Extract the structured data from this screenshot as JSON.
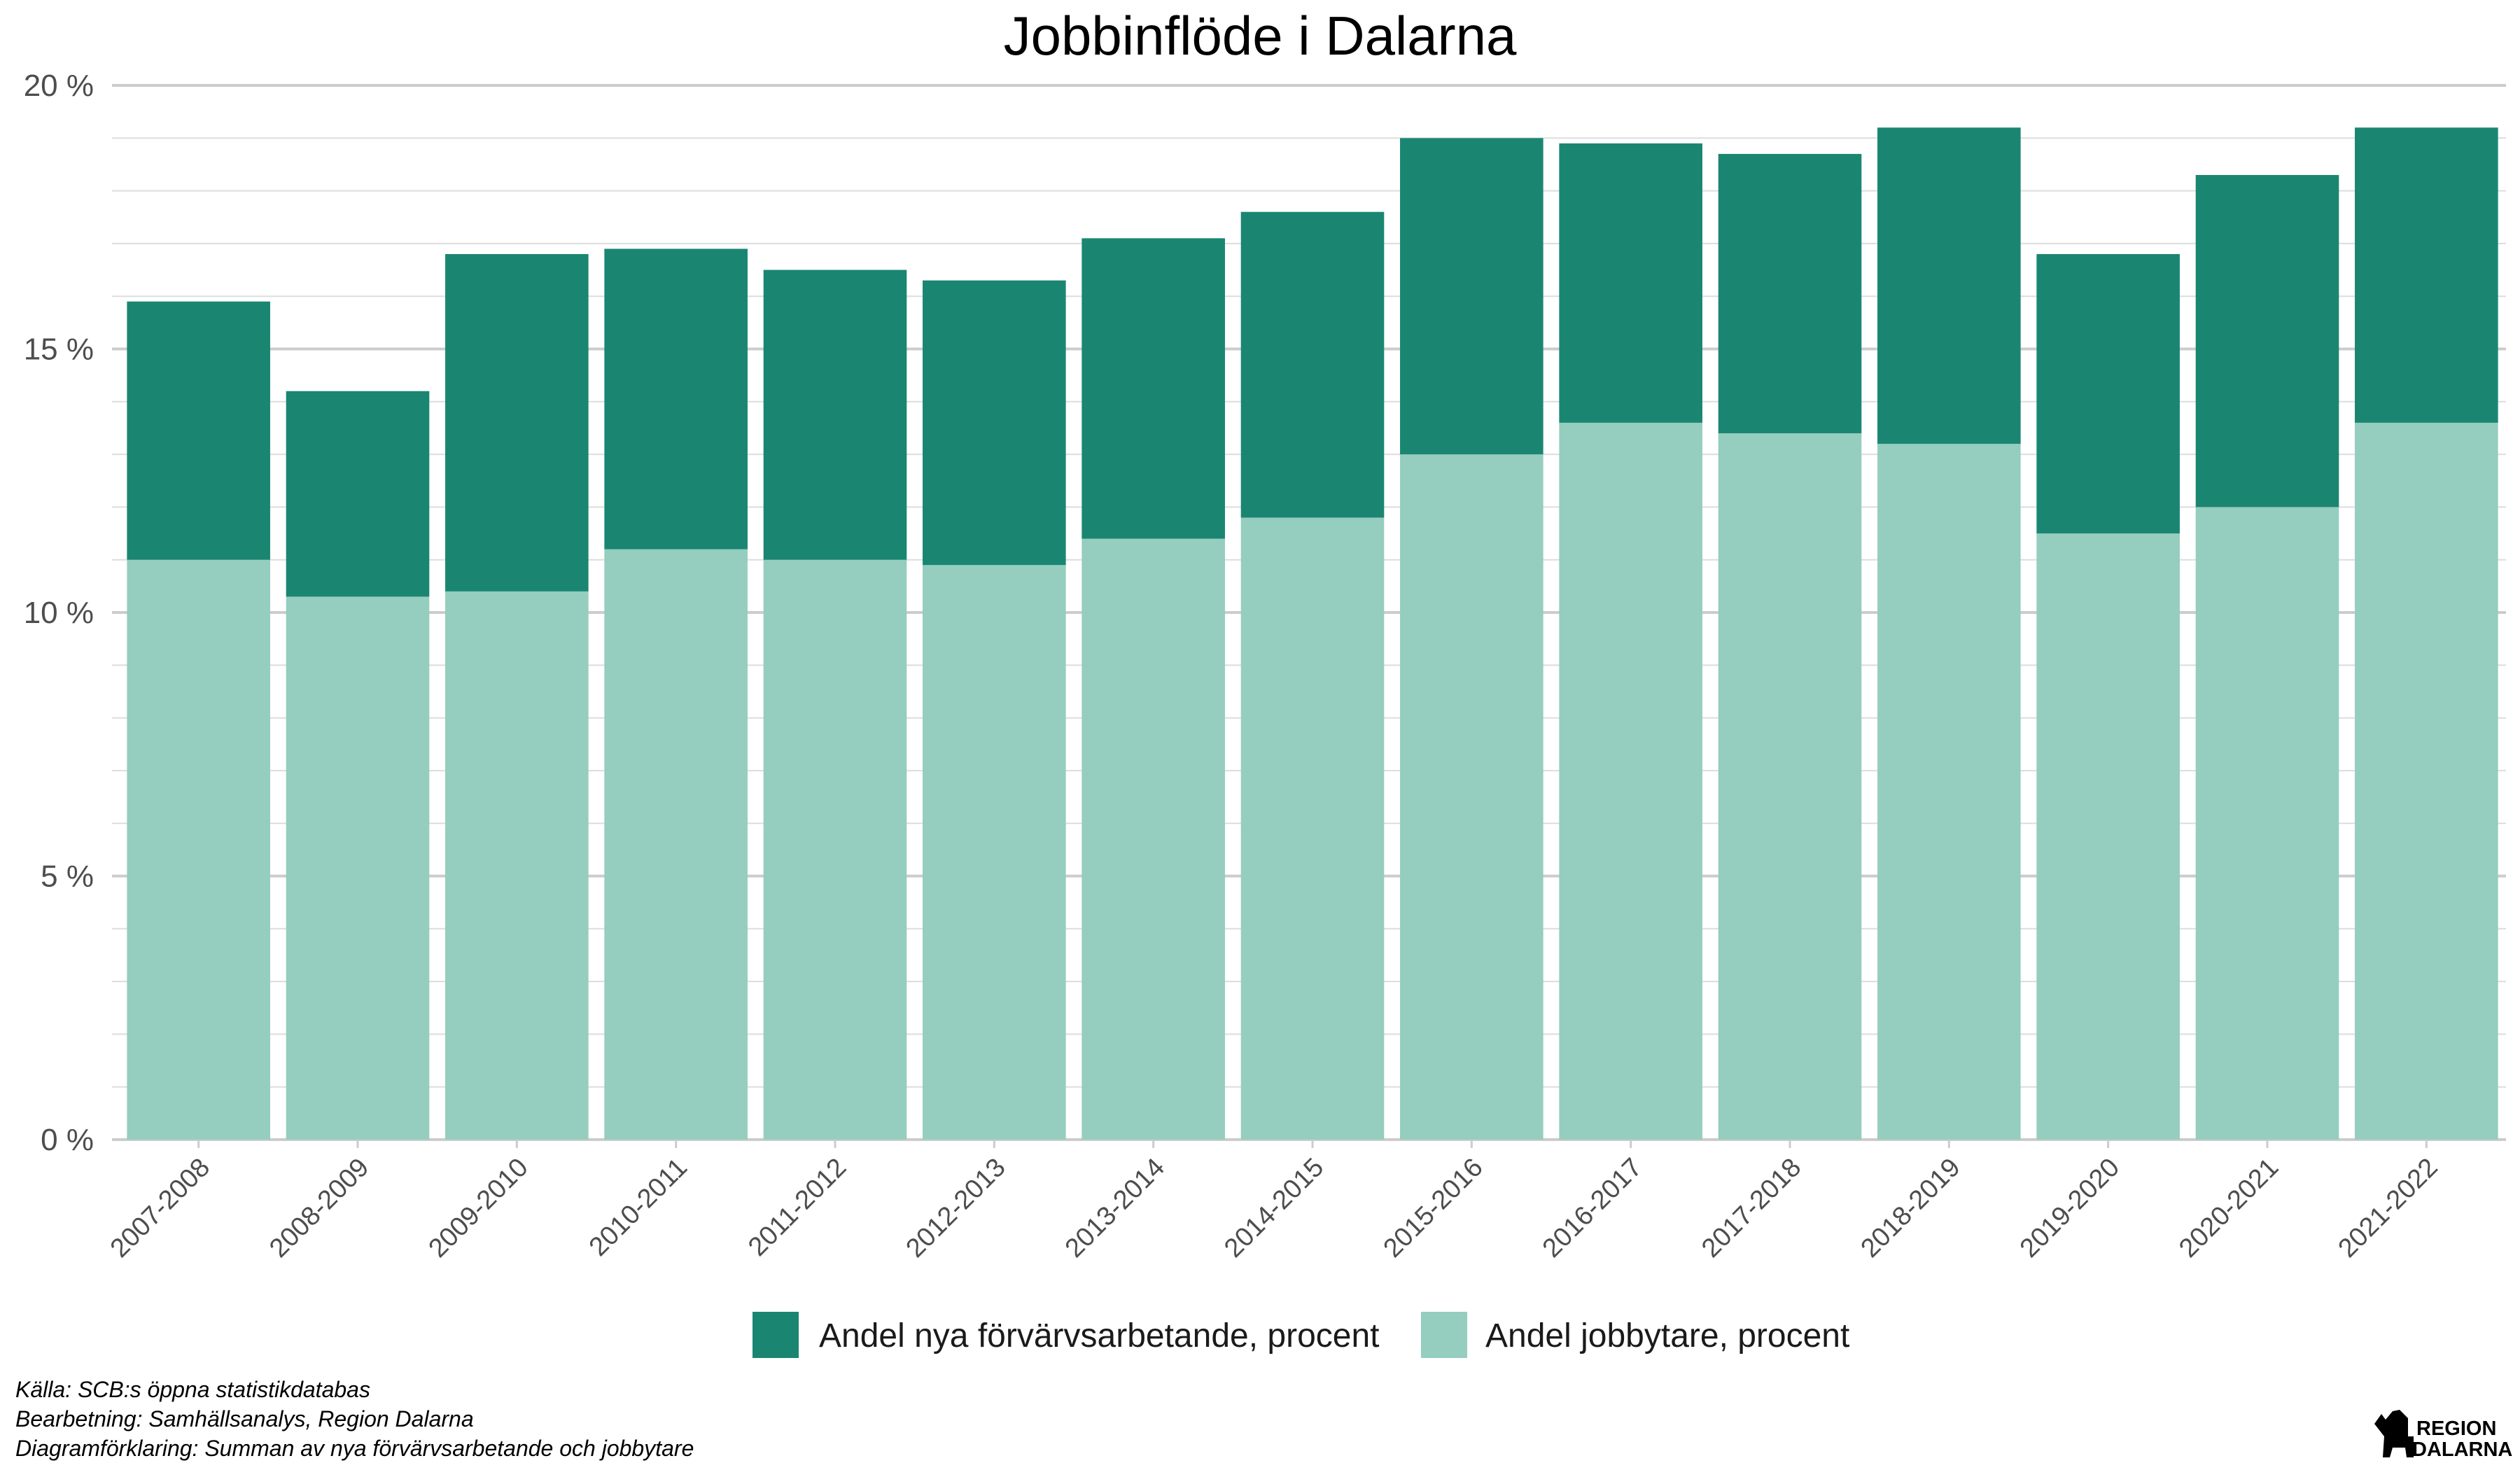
{
  "chart_data": {
    "type": "bar",
    "stacked": true,
    "title": "Jobbinflöde  i Dalarna",
    "xlabel": "",
    "ylabel": "",
    "ylim": [
      0,
      20
    ],
    "y_tick_values": [
      0,
      5,
      10,
      15,
      20
    ],
    "y_tick_labels": [
      "0 %",
      "5 %",
      "10 %",
      "15 %",
      "20 %"
    ],
    "grid": true,
    "legend_position": "bottom",
    "categories": [
      "2007-2008",
      "2008-2009",
      "2009-2010",
      "2010-2011",
      "2011-2012",
      "2012-2013",
      "2013-2014",
      "2014-2015",
      "2015-2016",
      "2016-2017",
      "2017-2018",
      "2018-2019",
      "2019-2020",
      "2020-2021",
      "2021-2022"
    ],
    "series": [
      {
        "name": "Andel jobbytare, procent",
        "color": "#95cdbe",
        "values": [
          11.0,
          10.3,
          10.4,
          11.2,
          11.0,
          10.9,
          11.4,
          11.8,
          13.0,
          13.6,
          13.4,
          13.2,
          11.5,
          12.0,
          13.6
        ]
      },
      {
        "name": "Andel nya förvärvsarbetande, procent",
        "color": "#1a8672",
        "values": [
          4.9,
          3.9,
          6.4,
          5.7,
          5.5,
          5.4,
          5.7,
          5.8,
          6.0,
          5.3,
          5.3,
          6.0,
          5.3,
          6.3,
          5.6
        ]
      }
    ],
    "legend_order": [
      1,
      0
    ]
  },
  "footer": {
    "source": "Källa: SCB:s öppna statistikdatabas",
    "processing": "Bearbetning: Samhällsanalys, Region Dalarna",
    "explanation": "Diagramförklaring: Summan av nya förvärvsarbetande och jobbytare"
  },
  "logo": {
    "line1": "REGION",
    "line2": "DALARNA",
    "icon": "dala-horse-icon"
  }
}
